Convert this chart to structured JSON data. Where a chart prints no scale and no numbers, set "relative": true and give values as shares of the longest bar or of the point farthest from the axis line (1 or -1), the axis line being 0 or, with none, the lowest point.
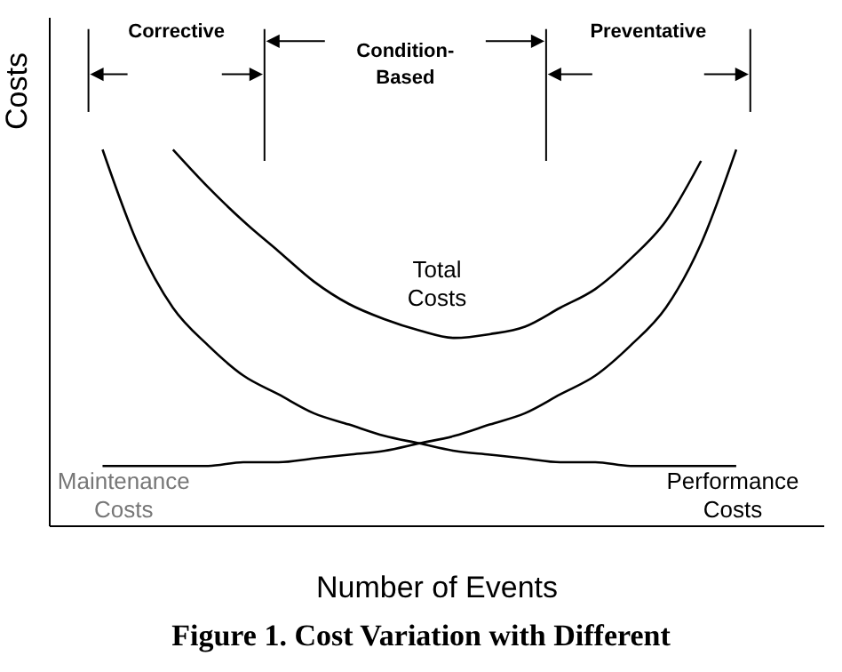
{
  "chart_data": {
    "type": "line",
    "relative": true,
    "xlabel": "Number of Events",
    "ylabel": "Costs",
    "categories": [
      null,
      null,
      null,
      null,
      null,
      null,
      null,
      null,
      null,
      null,
      null,
      null,
      null,
      null,
      null,
      null,
      null,
      null,
      null,
      null,
      null,
      null
    ],
    "series": [
      {
        "name": "Total Costs",
        "color": "#000000",
        "values": [
          null,
          null,
          null,
          1,
          0.9,
          0.81,
          0.73,
          0.65,
          0.59,
          0.55,
          0.52,
          0.5,
          0.51,
          0.53,
          0.58,
          0.63,
          0.71,
          0.81,
          0.97,
          null,
          null,
          null
        ]
      },
      {
        "name": "Maintenance Costs",
        "color": "#000000",
        "values": [
          null,
          0.16,
          0.16,
          0.16,
          0.16,
          0.17,
          0.17,
          0.18,
          0.19,
          0.2,
          0.22,
          0.24,
          0.27,
          0.3,
          0.35,
          0.4,
          0.48,
          0.58,
          0.75,
          1,
          null,
          null
        ]
      },
      {
        "name": "Performance Costs",
        "color": "#000000",
        "values": [
          null,
          1,
          0.75,
          0.58,
          0.48,
          0.4,
          0.35,
          0.3,
          0.27,
          0.24,
          0.22,
          0.2,
          0.19,
          0.18,
          0.17,
          0.17,
          0.16,
          0.16,
          0.16,
          0.16,
          null,
          null
        ]
      }
    ],
    "annotations": [
      "Corrective",
      "Condition-Based",
      "Preventative",
      "Figure 1. Cost Variation with Different"
    ],
    "grid": false,
    "legend": false,
    "marker": "none",
    "line_style": "solid"
  }
}
